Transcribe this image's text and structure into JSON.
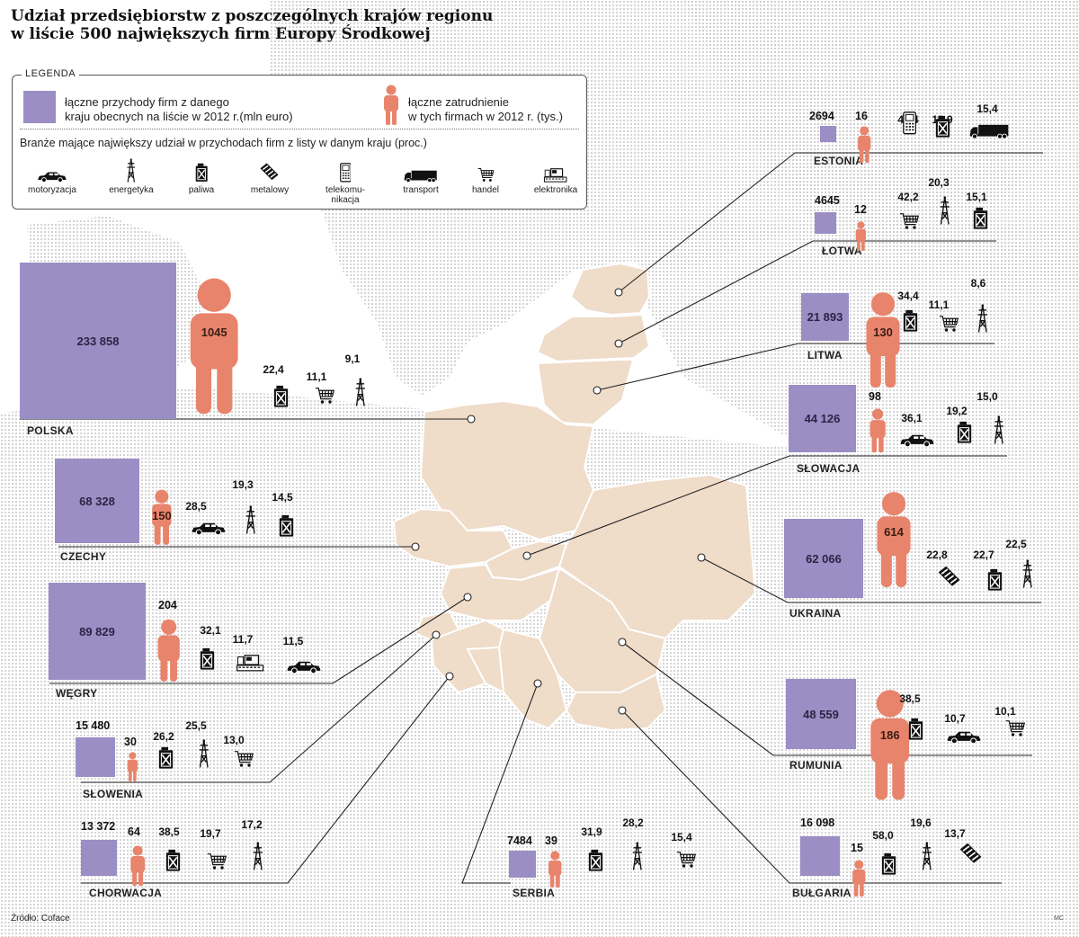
{
  "title": {
    "line1": "Udział przedsiębiorstw z poszczególnych krajów regionu",
    "line2": "w liście 500 największych firm Europy Środkowej"
  },
  "legend": {
    "heading": "LEGENDA",
    "revenue_text_1": "łączne przychody firm z danego",
    "revenue_text_2": "kraju obecnych na liście w 2012 r.(mln euro)",
    "employment_text_1": "łączne zatrudnienie",
    "employment_text_2": "w tych firmach w 2012 r. (tys.)",
    "sectors_heading": "Branże mające największy udział w przychodach firm z listy w danym kraju (proc.)",
    "sectors": [
      {
        "icon": "car-icon",
        "label1": "motoryzacja",
        "label2": ""
      },
      {
        "icon": "power-pylon-icon",
        "label1": "energetyka",
        "label2": ""
      },
      {
        "icon": "fuel-canister-icon",
        "label1": "paliwa",
        "label2": ""
      },
      {
        "icon": "steel-beam-icon",
        "label1": "metalowy",
        "label2": ""
      },
      {
        "icon": "phone-icon",
        "label1": "telekomu-",
        "label2": "nikacja"
      },
      {
        "icon": "truck-icon",
        "label1": "transport",
        "label2": ""
      },
      {
        "icon": "cart-icon",
        "label1": "handel",
        "label2": ""
      },
      {
        "icon": "electronics-icon",
        "label1": "elektronika",
        "label2": ""
      }
    ]
  },
  "colors": {
    "revenue": "#9b8ec4",
    "employment": "#e8846c",
    "land": "#efdcc9",
    "land_border": "#ffffff",
    "dots": "#c7c7c7"
  },
  "countries": [
    {
      "id": "estonia",
      "name": "ESTONIA",
      "revenue": "2694",
      "employment": "16",
      "sectors": [
        {
          "icon": "phone-icon",
          "value": "49,4"
        },
        {
          "icon": "fuel-canister-icon",
          "value": "19,9"
        },
        {
          "icon": "truck-icon",
          "value": "15,4"
        }
      ]
    },
    {
      "id": "lotwa",
      "name": "ŁOTWA",
      "revenue": "4645",
      "employment": "12",
      "sectors": [
        {
          "icon": "cart-icon",
          "value": "42,2"
        },
        {
          "icon": "power-pylon-icon",
          "value": "20,3"
        },
        {
          "icon": "fuel-canister-icon",
          "value": "15,1"
        }
      ]
    },
    {
      "id": "litwa",
      "name": "LITWA",
      "revenue": "21 893",
      "employment": "130",
      "sectors": [
        {
          "icon": "fuel-canister-icon",
          "value": "34,4"
        },
        {
          "icon": "cart-icon",
          "value": "11,1"
        },
        {
          "icon": "power-pylon-icon",
          "value": "8,6"
        }
      ]
    },
    {
      "id": "slowacja",
      "name": "SŁOWACJA",
      "revenue": "44 126",
      "employment": "98",
      "sectors": [
        {
          "icon": "car-icon",
          "value": "36,1"
        },
        {
          "icon": "fuel-canister-icon",
          "value": "19,2"
        },
        {
          "icon": "power-pylon-icon",
          "value": "15,0"
        }
      ]
    },
    {
      "id": "ukraina",
      "name": "UKRAINA",
      "revenue": "62 066",
      "employment": "614",
      "sectors": [
        {
          "icon": "steel-beam-icon",
          "value": "22,8"
        },
        {
          "icon": "fuel-canister-icon",
          "value": "22,7"
        },
        {
          "icon": "power-pylon-icon",
          "value": "22,5"
        }
      ]
    },
    {
      "id": "rumunia",
      "name": "RUMUNIA",
      "revenue": "48 559",
      "employment": "186",
      "sectors": [
        {
          "icon": "fuel-canister-icon",
          "value": "38,5"
        },
        {
          "icon": "car-icon",
          "value": "10,7"
        },
        {
          "icon": "cart-icon",
          "value": "10,1"
        }
      ]
    },
    {
      "id": "bulgaria",
      "name": "BUŁGARIA",
      "revenue": "16 098",
      "employment": "15",
      "sectors": [
        {
          "icon": "fuel-canister-icon",
          "value": "58,0"
        },
        {
          "icon": "power-pylon-icon",
          "value": "19,6"
        },
        {
          "icon": "steel-beam-icon",
          "value": "13,7"
        }
      ]
    },
    {
      "id": "polska",
      "name": "POLSKA",
      "revenue": "233 858",
      "employment": "1045",
      "sectors": [
        {
          "icon": "fuel-canister-icon",
          "value": "22,4"
        },
        {
          "icon": "cart-icon",
          "value": "11,1"
        },
        {
          "icon": "power-pylon-icon",
          "value": "9,1"
        }
      ]
    },
    {
      "id": "czechy",
      "name": "CZECHY",
      "revenue": "68 328",
      "employment": "150",
      "sectors": [
        {
          "icon": "car-icon",
          "value": "28,5"
        },
        {
          "icon": "power-pylon-icon",
          "value": "19,3"
        },
        {
          "icon": "fuel-canister-icon",
          "value": "14,5"
        }
      ]
    },
    {
      "id": "wegry",
      "name": "WĘGRY",
      "revenue": "89 829",
      "employment": "204",
      "sectors": [
        {
          "icon": "fuel-canister-icon",
          "value": "32,1"
        },
        {
          "icon": "electronics-icon",
          "value": "11,7"
        },
        {
          "icon": "car-icon",
          "value": "11,5"
        }
      ]
    },
    {
      "id": "slowenia",
      "name": "SŁOWENIA",
      "revenue": "15 480",
      "employment": "30",
      "sectors": [
        {
          "icon": "fuel-canister-icon",
          "value": "26,2"
        },
        {
          "icon": "power-pylon-icon",
          "value": "25,5"
        },
        {
          "icon": "cart-icon",
          "value": "13,0"
        }
      ]
    },
    {
      "id": "chorwacja",
      "name": "CHORWACJA",
      "revenue": "13 372",
      "employment": "64",
      "sectors": [
        {
          "icon": "fuel-canister-icon",
          "value": "38,5"
        },
        {
          "icon": "cart-icon",
          "value": "19,7"
        },
        {
          "icon": "power-pylon-icon",
          "value": "17,2"
        }
      ]
    },
    {
      "id": "serbia",
      "name": "SERBIA",
      "revenue": "7484",
      "employment": "39",
      "sectors": [
        {
          "icon": "fuel-canister-icon",
          "value": "31,9"
        },
        {
          "icon": "power-pylon-icon",
          "value": "28,2"
        },
        {
          "icon": "cart-icon",
          "value": "15,4"
        }
      ]
    }
  ],
  "source": "Źródło: Coface",
  "author": "MC"
}
